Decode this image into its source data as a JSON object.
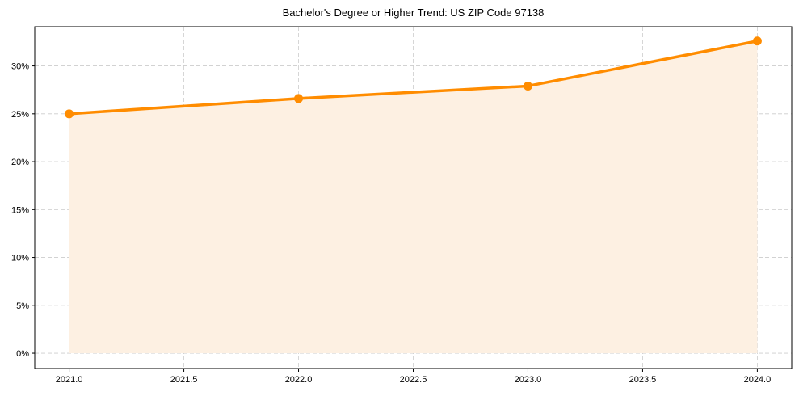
{
  "chart_data": {
    "type": "line",
    "title": "Bachelor's Degree or Higher Trend: US ZIP Code 97138",
    "xlabel": "",
    "ylabel": "",
    "x": [
      2021,
      2022,
      2023,
      2024
    ],
    "series": [
      {
        "name": "Bachelor's Degree or Higher",
        "values": [
          25.0,
          26.6,
          27.9,
          32.6
        ],
        "unit": "%"
      }
    ],
    "xlim": [
      2020.85,
      2024.15
    ],
    "ylim": [
      -1.6,
      34.1
    ],
    "xticks": [
      "2021.0",
      "2021.5",
      "2022.0",
      "2022.5",
      "2023.0",
      "2023.5",
      "2024.0"
    ],
    "yticks": [
      "0%",
      "5%",
      "10%",
      "15%",
      "20%",
      "25%",
      "30%"
    ],
    "grid": true,
    "grid_style": "dashed",
    "area_fill": true,
    "legend": null,
    "colors": {
      "line": "#ff8c00",
      "fill": "#fdf0e2",
      "grid": "#cccccc",
      "axis": "#000000"
    }
  }
}
